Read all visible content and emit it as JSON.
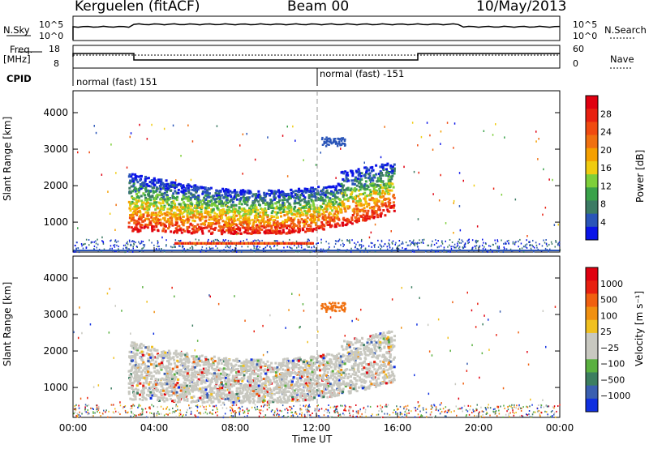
{
  "header": {
    "station": "Kerguelen (fitACF)",
    "beam": "Beam 00",
    "date": "10/May/2013"
  },
  "top_panels": {
    "nsky": {
      "label": "N.Sky",
      "ticks": [
        "10^5",
        "10^0"
      ],
      "right_label": "N.Search",
      "right_ticks": [
        "10^5",
        "10^0"
      ]
    },
    "freq": {
      "label_line1": "Freq.",
      "label_line2": "[MHz]",
      "ticks": [
        "18",
        "8"
      ],
      "right_label": "Nave",
      "right_ticks": [
        "60",
        "0"
      ]
    },
    "cpid": {
      "label": "CPID",
      "segments": [
        "normal (fast) 151",
        "normal (fast) -151"
      ]
    }
  },
  "chart_data": [
    {
      "type": "heatmap",
      "name": "power",
      "ylabel": "Slant Range [km]",
      "ylim": [
        180,
        4600
      ],
      "yticks": [
        1000,
        2000,
        3000,
        4000
      ],
      "xlim": [
        0,
        24
      ],
      "colorbar": {
        "label": "Power [dB]",
        "ticks": [
          "28",
          "24",
          "20",
          "16",
          "12",
          "8",
          "4"
        ],
        "colors": [
          "#0a14e8",
          "#2a55b8",
          "#3c7b64",
          "#3aa24a",
          "#7ecf3a",
          "#f0cc10",
          "#f5a000",
          "#f07010",
          "#f04a10",
          "#e82010",
          "#e00010"
        ]
      },
      "echo_region": {
        "start_h": 2.7,
        "end_h": 15.8,
        "range_min_km": 700,
        "range_max_km": 2400
      },
      "ground_band": {
        "start_h": 5.0,
        "end_h": 11.8,
        "range_km": 450
      }
    },
    {
      "type": "heatmap",
      "name": "velocity",
      "ylabel": "Slant Range [km]",
      "ylim": [
        180,
        4600
      ],
      "yticks": [
        1000,
        2000,
        3000,
        4000
      ],
      "xlim": [
        0,
        24
      ],
      "colorbar": {
        "label": "Velocity [m s⁻¹]",
        "ticks": [
          "1000",
          "500",
          "100",
          "25",
          "−25",
          "−100",
          "−500",
          "−1000"
        ],
        "colors": [
          "#1030e0",
          "#3a5fb0",
          "#3c7e60",
          "#5ab040",
          "#c8c8c0",
          "#c8c8c0",
          "#f0c020",
          "#f09010",
          "#f06010",
          "#e82010",
          "#e00010"
        ]
      },
      "echo_region": {
        "start_h": 2.7,
        "end_h": 15.8,
        "range_min_km": 600,
        "range_max_km": 2300
      }
    }
  ],
  "x_axis": {
    "ticks": [
      "00:00",
      "04:00",
      "08:00",
      "12:00",
      "16:00",
      "20:00",
      "00:00"
    ],
    "label": "Time UT"
  }
}
